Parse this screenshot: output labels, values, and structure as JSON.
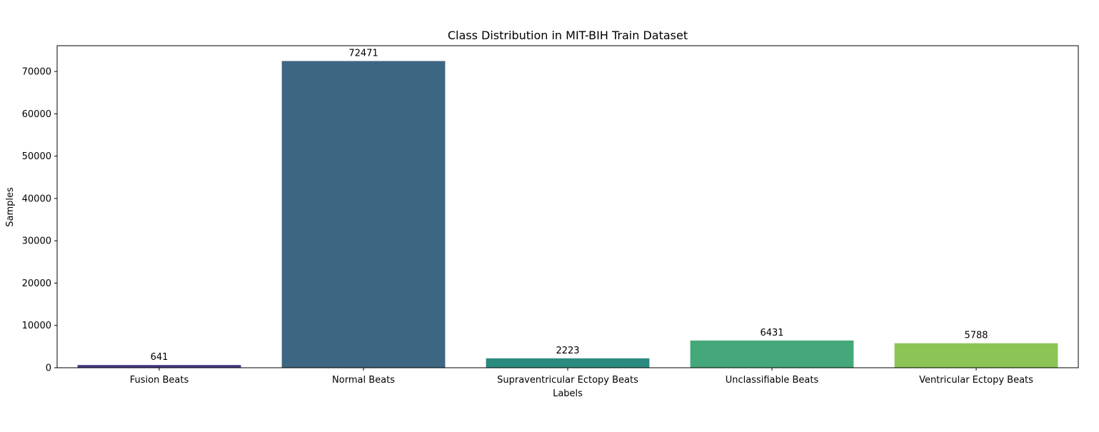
{
  "chart_data": {
    "type": "bar",
    "title": "Class Distribution in MIT-BIH Train Dataset",
    "xlabel": "Labels",
    "ylabel": "Samples",
    "categories": [
      "Fusion Beats",
      "Normal Beats",
      "Supraventricular Ectopy Beats",
      "Unclassifiable Beats",
      "Ventricular Ectopy Beats"
    ],
    "values": [
      641,
      72471,
      2223,
      6431,
      5788
    ],
    "data_labels": [
      "641",
      "72471",
      "2223",
      "6431",
      "5788"
    ],
    "colors": [
      "#453781",
      "#3d6682",
      "#2a8b80",
      "#45a87a",
      "#8cc556"
    ],
    "ylim": [
      0,
      76095
    ],
    "yticks": [
      0,
      10000,
      20000,
      30000,
      40000,
      50000,
      60000,
      70000
    ],
    "ytick_labels": [
      "0",
      "10000",
      "20000",
      "30000",
      "40000",
      "50000",
      "60000",
      "70000"
    ],
    "grid": false,
    "legend": "none"
  }
}
